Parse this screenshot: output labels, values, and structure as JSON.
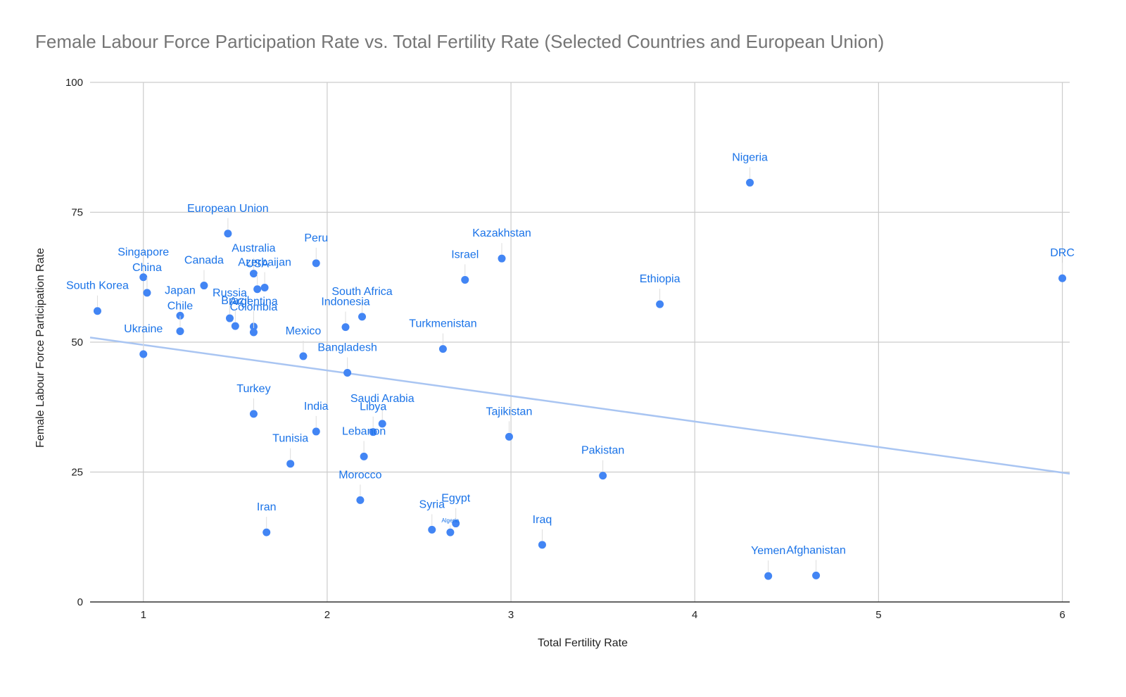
{
  "chart_data": {
    "type": "scatter",
    "title": "Female Labour Force Participation Rate  vs. Total Fertility Rate (Selected Countries and European Union)",
    "xlabel": "Total Fertility Rate",
    "ylabel": "Female Labour Force Participation Rate",
    "xlim": [
      0.71,
      6.04
    ],
    "ylim": [
      0,
      100
    ],
    "xticks": [
      1,
      2,
      3,
      4,
      5,
      6
    ],
    "yticks": [
      0,
      25,
      50,
      75,
      100
    ],
    "grid": true,
    "point_color": "#4285f4",
    "label_color": "#1a73e8",
    "trendline_color": "#a9c5f2",
    "trendline": {
      "x": [
        0.71,
        6.04
      ],
      "y": [
        50.9,
        24.7
      ]
    },
    "series": [
      {
        "name": "Female Labour Force Participation Rate",
        "points": [
          {
            "label": "Nigeria",
            "x": 4.3,
            "y": 80.7
          },
          {
            "label": "European Union",
            "x": 1.46,
            "y": 70.9
          },
          {
            "label": "Kazakhstan",
            "x": 2.95,
            "y": 66.1
          },
          {
            "label": "Peru",
            "x": 1.94,
            "y": 65.2
          },
          {
            "label": "Australia",
            "x": 1.6,
            "y": 63.2
          },
          {
            "label": "Singapore",
            "x": 1.0,
            "y": 62.5
          },
          {
            "label": "DRC",
            "x": 6.0,
            "y": 62.3
          },
          {
            "label": "Israel",
            "x": 2.75,
            "y": 62.0
          },
          {
            "label": "Azerbaijan",
            "x": 1.66,
            "y": 60.5
          },
          {
            "label": "Canada",
            "x": 1.33,
            "y": 60.9
          },
          {
            "label": "USA",
            "x": 1.62,
            "y": 60.2
          },
          {
            "label": "China",
            "x": 1.02,
            "y": 59.5
          },
          {
            "label": "Ethiopia",
            "x": 3.81,
            "y": 57.3
          },
          {
            "label": "South Korea",
            "x": 0.75,
            "y": 56.0
          },
          {
            "label": "Japan",
            "x": 1.2,
            "y": 55.1
          },
          {
            "label": "South Africa",
            "x": 2.19,
            "y": 54.9
          },
          {
            "label": "Russia",
            "x": 1.47,
            "y": 54.6
          },
          {
            "label": "Argentina",
            "x": 1.6,
            "y": 53.0
          },
          {
            "label": "Brazil",
            "x": 1.5,
            "y": 53.1
          },
          {
            "label": "Indonesia",
            "x": 2.1,
            "y": 52.9
          },
          {
            "label": "Chile",
            "x": 1.2,
            "y": 52.1
          },
          {
            "label": "Colombia",
            "x": 1.6,
            "y": 51.9
          },
          {
            "label": "Turkmenistan",
            "x": 2.63,
            "y": 48.7
          },
          {
            "label": "Ukraine",
            "x": 1.0,
            "y": 47.7
          },
          {
            "label": "Mexico",
            "x": 1.87,
            "y": 47.3
          },
          {
            "label": "Bangladesh",
            "x": 2.11,
            "y": 44.1
          },
          {
            "label": "Turkey",
            "x": 1.6,
            "y": 36.2
          },
          {
            "label": "Saudi Arabia",
            "x": 2.3,
            "y": 34.3
          },
          {
            "label": "India",
            "x": 1.94,
            "y": 32.8
          },
          {
            "label": "Libya",
            "x": 2.25,
            "y": 32.7
          },
          {
            "label": "Tajikistan",
            "x": 2.99,
            "y": 31.8
          },
          {
            "label": "Lebanon",
            "x": 2.2,
            "y": 28.0
          },
          {
            "label": "Tunisia",
            "x": 1.8,
            "y": 26.6
          },
          {
            "label": "Pakistan",
            "x": 3.5,
            "y": 24.3
          },
          {
            "label": "Morocco",
            "x": 2.18,
            "y": 19.6
          },
          {
            "label": "Egypt",
            "x": 2.7,
            "y": 15.1
          },
          {
            "label": "Syria",
            "x": 2.57,
            "y": 13.9
          },
          {
            "label": "Algeria",
            "x": 2.67,
            "y": 13.4
          },
          {
            "label": "Iran",
            "x": 1.67,
            "y": 13.4
          },
          {
            "label": "Iraq",
            "x": 3.17,
            "y": 11.0
          },
          {
            "label": "Afghanistan",
            "x": 4.66,
            "y": 5.1
          },
          {
            "label": "Yemen",
            "x": 4.4,
            "y": 5.0
          }
        ]
      }
    ]
  }
}
